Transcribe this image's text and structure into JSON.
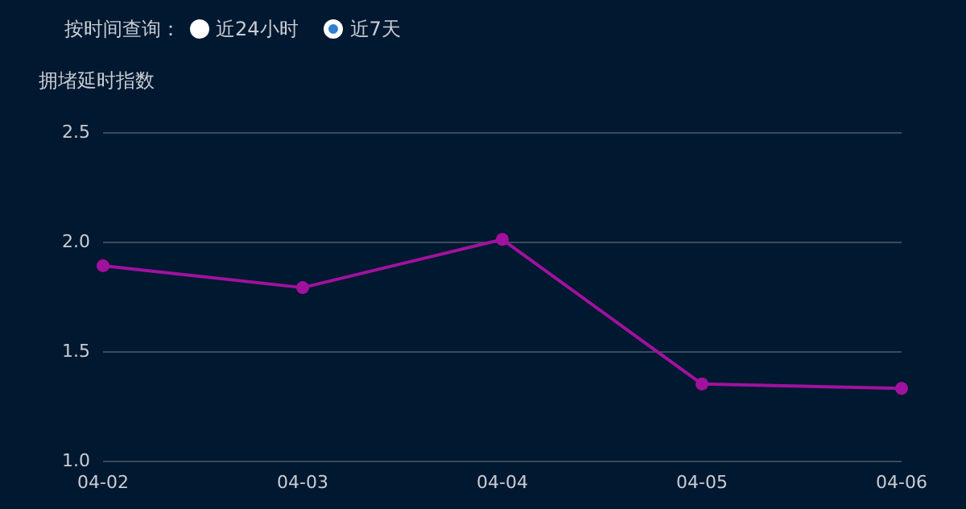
{
  "chart_data": {
    "type": "line",
    "ylabel": "拥堵延时指数",
    "annotations": [
      "按时间查询：",
      "近24小时",
      "近7天"
    ],
    "categories": [
      "04-02",
      "04-03",
      "04-04",
      "04-05",
      "04-06"
    ],
    "series": [
      {
        "color": "#a0129e",
        "values": [
          1.89,
          1.79,
          2.01,
          1.35,
          1.33
        ]
      }
    ],
    "ylim": [
      1.0,
      2.5
    ],
    "yticks": [
      {
        "value": 1.0,
        "label": "1.0"
      },
      {
        "value": 1.5,
        "label": "1.5"
      },
      {
        "value": 2.0,
        "label": "2.0"
      },
      {
        "value": 2.5,
        "label": "2.5"
      }
    ],
    "grid": "y",
    "marker": "circle",
    "line_style": "solid"
  }
}
